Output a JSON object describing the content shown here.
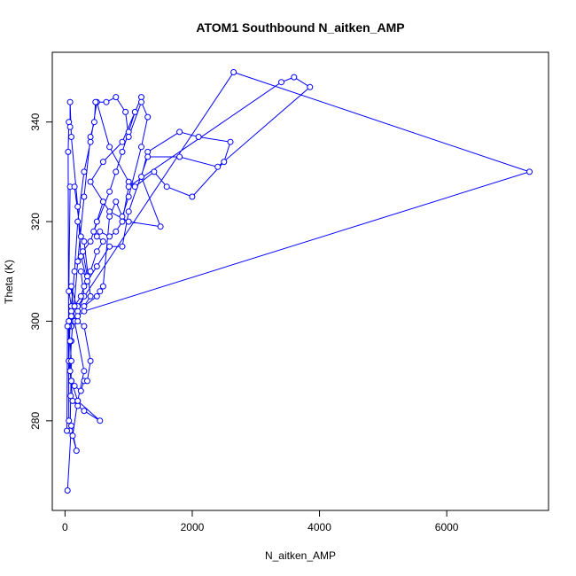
{
  "chart_data": {
    "type": "line",
    "title": "ATOM1 Southbound N_aitken_AMP",
    "xlabel": "N_aitken_AMP",
    "ylabel": "Theta (K)",
    "xlim": [
      -200,
      7600
    ],
    "ylim": [
      262,
      354
    ],
    "xticks": [
      0,
      2000,
      4000,
      6000
    ],
    "yticks": [
      280,
      300,
      320,
      340
    ],
    "grid": false,
    "legend": "none",
    "markers": "open-circle",
    "color": "#0000ff",
    "series": [
      {
        "values": [
          [
            40,
            266
          ],
          [
            100,
            279
          ],
          [
            180,
            274
          ],
          [
            120,
            277
          ],
          [
            200,
            284
          ],
          [
            300,
            290
          ],
          [
            150,
            300
          ],
          [
            100,
            307
          ],
          [
            200,
            302
          ],
          [
            300,
            305
          ],
          [
            250,
            310
          ],
          [
            350,
            309
          ],
          [
            280,
            314
          ],
          [
            400,
            316
          ],
          [
            500,
            320
          ],
          [
            600,
            324
          ],
          [
            450,
            318
          ],
          [
            700,
            326
          ],
          [
            800,
            330
          ],
          [
            900,
            334
          ],
          [
            1000,
            338
          ],
          [
            1100,
            342
          ],
          [
            1200,
            345
          ],
          [
            900,
            336
          ],
          [
            600,
            332
          ],
          [
            400,
            328
          ],
          [
            700,
            322
          ],
          [
            1000,
            320
          ],
          [
            1500,
            319
          ],
          [
            1200,
            329
          ],
          [
            1300,
            334
          ],
          [
            1800,
            338
          ],
          [
            2100,
            337
          ],
          [
            2600,
            336
          ],
          [
            2500,
            332
          ],
          [
            2000,
            325
          ],
          [
            1600,
            327
          ],
          [
            1400,
            330
          ],
          [
            1100,
            327
          ],
          [
            1000,
            328
          ],
          [
            700,
            335
          ],
          [
            500,
            344
          ],
          [
            400,
            336
          ],
          [
            300,
            330
          ],
          [
            200,
            320
          ],
          [
            150,
            310
          ],
          [
            100,
            303
          ],
          [
            80,
            300
          ],
          [
            60,
            292
          ],
          [
            100,
            288
          ],
          [
            150,
            287
          ],
          [
            250,
            286
          ],
          [
            300,
            288
          ],
          [
            350,
            288
          ],
          [
            400,
            292
          ],
          [
            300,
            299
          ],
          [
            200,
            300
          ],
          [
            100,
            299
          ],
          [
            80,
            300
          ],
          [
            100,
            303
          ],
          [
            60,
            306
          ],
          [
            80,
            327
          ],
          [
            150,
            327
          ],
          [
            250,
            317
          ],
          [
            300,
            316
          ],
          [
            400,
            305
          ],
          [
            300,
            303
          ],
          [
            500,
            305
          ],
          [
            550,
            306
          ],
          [
            600,
            307
          ],
          [
            700,
            321
          ],
          [
            800,
            324
          ],
          [
            900,
            321
          ],
          [
            1000,
            325
          ],
          [
            1200,
            335
          ],
          [
            1300,
            341
          ],
          [
            1200,
            344
          ],
          [
            1000,
            337
          ],
          [
            950,
            342
          ],
          [
            800,
            345
          ],
          [
            650,
            344
          ],
          [
            480,
            344
          ],
          [
            460,
            340
          ],
          [
            400,
            337
          ],
          [
            300,
            325
          ],
          [
            200,
            312
          ],
          [
            100,
            296
          ],
          [
            80,
            290
          ],
          [
            120,
            284
          ],
          [
            200,
            283
          ],
          [
            300,
            282
          ],
          [
            550,
            280
          ],
          [
            200,
            284
          ],
          [
            100,
            288
          ],
          [
            60,
            292
          ],
          [
            60,
            300
          ],
          [
            100,
            302
          ],
          [
            200,
            303
          ],
          [
            2650,
            350
          ],
          [
            7300,
            330
          ],
          [
            300,
            302
          ],
          [
            200,
            301
          ],
          [
            100,
            299
          ],
          [
            60,
            299
          ],
          [
            80,
            296
          ],
          [
            100,
            292
          ],
          [
            90,
            285
          ],
          [
            80,
            278
          ],
          [
            60,
            280
          ],
          [
            50,
            334
          ],
          [
            60,
            340
          ],
          [
            80,
            339
          ],
          [
            80,
            344
          ],
          [
            100,
            337
          ],
          [
            200,
            323
          ],
          [
            250,
            313
          ],
          [
            350,
            308
          ],
          [
            500,
            311
          ],
          [
            700,
            315
          ],
          [
            900,
            315
          ],
          [
            1000,
            322
          ],
          [
            1300,
            333
          ],
          [
            1800,
            333
          ],
          [
            2400,
            331
          ],
          [
            3850,
            347
          ],
          [
            3600,
            349
          ],
          [
            3400,
            348
          ],
          [
            1000,
            327
          ],
          [
            900,
            320
          ],
          [
            800,
            318
          ],
          [
            700,
            317
          ],
          [
            550,
            318
          ],
          [
            500,
            317
          ],
          [
            600,
            316
          ],
          [
            500,
            314
          ],
          [
            400,
            310
          ],
          [
            300,
            307
          ],
          [
            250,
            305
          ],
          [
            150,
            303
          ],
          [
            100,
            301
          ],
          [
            60,
            300
          ],
          [
            40,
            299
          ],
          [
            30,
            278
          ]
        ]
      }
    ]
  }
}
